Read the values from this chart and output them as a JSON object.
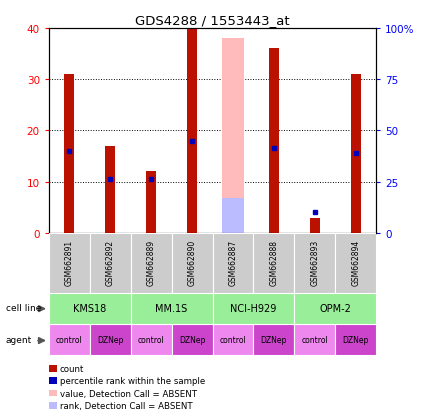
{
  "title": "GDS4288 / 1553443_at",
  "samples": [
    "GSM662891",
    "GSM662892",
    "GSM662889",
    "GSM662890",
    "GSM662887",
    "GSM662888",
    "GSM662893",
    "GSM662894"
  ],
  "count_values": [
    31,
    17,
    12,
    40,
    0,
    36,
    3,
    31
  ],
  "percentile_values": [
    16,
    10.5,
    10.5,
    18,
    0,
    16.5,
    4,
    15.5
  ],
  "absent_count": [
    0,
    0,
    0,
    0,
    38,
    0,
    0,
    0
  ],
  "absent_rank": [
    0,
    0,
    0,
    0,
    17,
    0,
    0,
    0
  ],
  "cell_lines": [
    [
      "KMS18",
      0,
      2
    ],
    [
      "MM.1S",
      2,
      4
    ],
    [
      "NCI-H929",
      4,
      6
    ],
    [
      "OPM-2",
      6,
      8
    ]
  ],
  "agents": [
    "control",
    "DZNep",
    "control",
    "DZNep",
    "control",
    "DZNep",
    "control",
    "DZNep"
  ],
  "bar_color_red": "#bb1100",
  "bar_color_blue": "#0000bb",
  "bar_color_pink": "#ffbbbb",
  "bar_color_lightblue": "#bbbbff",
  "cell_line_color": "#99ee99",
  "agent_color_control": "#ee88ee",
  "agent_color_dznep": "#cc44cc",
  "sample_bg_color": "#cccccc",
  "xlim": [
    -0.5,
    7.5
  ],
  "ylim_left": [
    0,
    40
  ],
  "yticks_left": [
    0,
    10,
    20,
    30,
    40
  ],
  "yticks_right": [
    0,
    25,
    50,
    75,
    100
  ],
  "ytick_labels_right": [
    "0",
    "25",
    "50",
    "75",
    "100%"
  ],
  "legend_items": [
    {
      "color": "#bb1100",
      "label": "count"
    },
    {
      "color": "#0000bb",
      "label": "percentile rank within the sample"
    },
    {
      "color": "#ffbbbb",
      "label": "value, Detection Call = ABSENT"
    },
    {
      "color": "#bbbbff",
      "label": "rank, Detection Call = ABSENT"
    }
  ]
}
